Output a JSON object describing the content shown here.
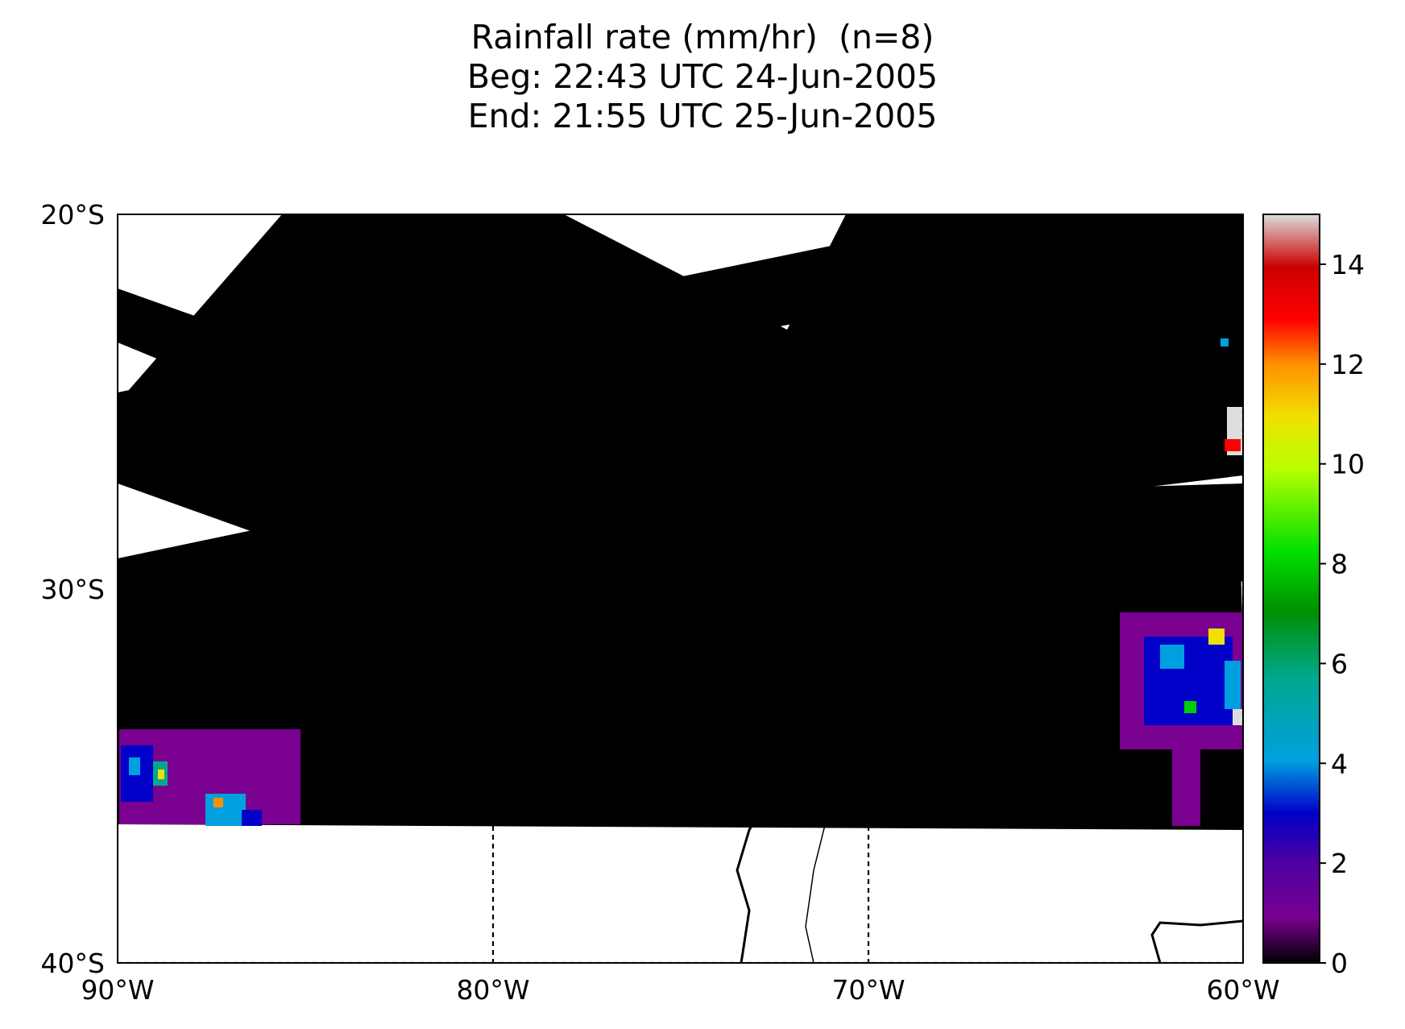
{
  "title": {
    "line1": "Rainfall rate (mm/hr)  (n=8)",
    "line2": "Beg: 22:43 UTC 24-Jun-2005",
    "line3": "End: 21:55 UTC 25-Jun-2005"
  },
  "map": {
    "lon_range": [
      -90,
      -60
    ],
    "lat_range": [
      -40,
      -20
    ],
    "lat_ticks": [
      "20°S",
      "30°S",
      "40°S"
    ],
    "lon_ticks": [
      "90°W",
      "80°W",
      "70°W",
      "60°W"
    ],
    "gridlines": "dashed",
    "swath_color": "#000000",
    "no_data_color": "#ffffff"
  },
  "colorbar": {
    "min": 0,
    "max": 15,
    "ticks": [
      "0",
      "2",
      "4",
      "6",
      "8",
      "10",
      "12",
      "14"
    ],
    "colors": [
      "#000000",
      "#7a0090",
      "#0000c8",
      "#00a0e0",
      "#00a890",
      "#00d000",
      "#b8ff00",
      "#f0e000",
      "#ff9000",
      "#ff0000",
      "#cc0000",
      "#cccccc"
    ]
  }
}
